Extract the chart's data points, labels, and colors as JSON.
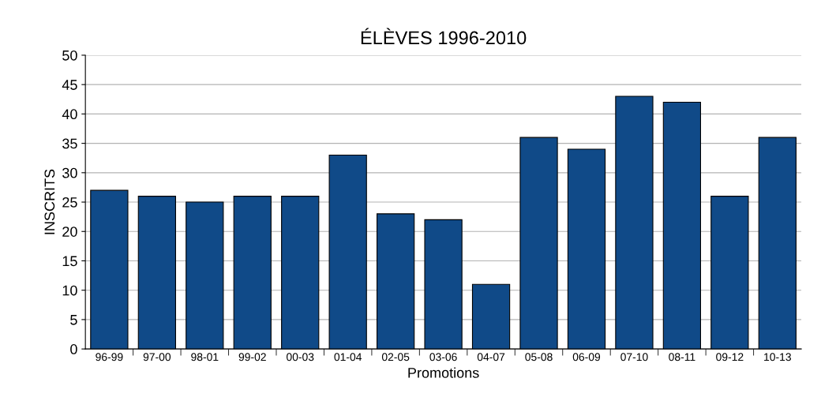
{
  "chart_data": {
    "type": "bar",
    "title": "ÉLÈVES 1996-2010",
    "xlabel": "Promotions",
    "ylabel": "INSCRITS",
    "categories": [
      "96-99",
      "97-00",
      "98-01",
      "99-02",
      "00-03",
      "01-04",
      "02-05",
      "03-06",
      "04-07",
      "05-08",
      "06-09",
      "07-10",
      "08-11",
      "09-12",
      "10-13"
    ],
    "values": [
      27,
      26,
      25,
      26,
      26,
      33,
      23,
      22,
      11,
      36,
      34,
      43,
      42,
      26,
      36
    ],
    "color": "#104a88",
    "ylim": [
      0,
      50
    ],
    "yticks": [
      0,
      5,
      10,
      15,
      20,
      25,
      30,
      35,
      40,
      45,
      50
    ],
    "grid": "y",
    "legend": false
  }
}
